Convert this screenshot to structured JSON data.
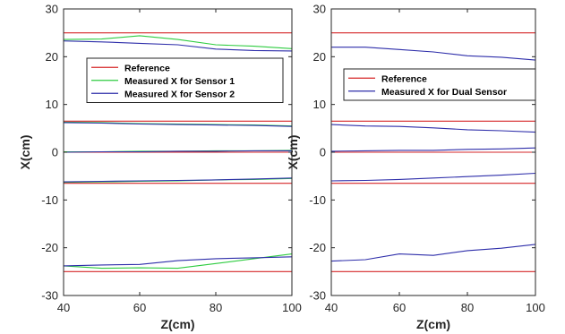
{
  "chart_data": [
    {
      "type": "line",
      "title": "",
      "xlabel": "Z(cm)",
      "ylabel": "X(cm)",
      "xlim": [
        40,
        100
      ],
      "ylim": [
        -30,
        30
      ],
      "xticks": [
        40,
        60,
        80,
        100
      ],
      "yticks": [
        30,
        20,
        10,
        0,
        -10,
        -20,
        -30
      ],
      "grid": false,
      "legend_position": "right",
      "legend": [
        "Reference",
        "Measured X for Sensor 1",
        "Measured X for Sensor 2"
      ],
      "series": [
        {
          "name": "Reference",
          "color": "#d62728",
          "lines": [
            {
              "x": [
                40,
                100
              ],
              "y": [
                25,
                25
              ]
            },
            {
              "x": [
                40,
                100
              ],
              "y": [
                6.5,
                6.5
              ]
            },
            {
              "x": [
                40,
                100
              ],
              "y": [
                0,
                0
              ]
            },
            {
              "x": [
                40,
                100
              ],
              "y": [
                -6.5,
                -6.5
              ]
            },
            {
              "x": [
                40,
                100
              ],
              "y": [
                -25,
                -25
              ]
            }
          ]
        },
        {
          "name": "Measured X for Sensor 1",
          "color": "#2ecc40",
          "lines": [
            {
              "x": [
                40,
                50,
                60,
                70,
                80,
                90,
                100
              ],
              "y": [
                23.6,
                23.7,
                24.4,
                23.6,
                22.5,
                22.2,
                21.7
              ]
            },
            {
              "x": [
                40,
                50,
                60,
                70,
                80,
                90,
                100
              ],
              "y": [
                6.3,
                6.2,
                6.0,
                5.9,
                5.8,
                5.7,
                5.5
              ]
            },
            {
              "x": [
                40,
                50,
                60,
                70,
                80,
                90,
                100
              ],
              "y": [
                0.1,
                0.1,
                0.2,
                0.2,
                0.3,
                0.3,
                0.4
              ]
            },
            {
              "x": [
                40,
                50,
                60,
                70,
                80,
                90,
                100
              ],
              "y": [
                -6.3,
                -6.2,
                -6.1,
                -6.0,
                -5.8,
                -5.7,
                -5.5
              ]
            },
            {
              "x": [
                40,
                50,
                60,
                70,
                80,
                90,
                100
              ],
              "y": [
                -23.8,
                -24.3,
                -24.2,
                -24.3,
                -23.3,
                -22.3,
                -21.3
              ]
            }
          ]
        },
        {
          "name": "Measured X for Sensor 2",
          "color": "#2e2eaa",
          "lines": [
            {
              "x": [
                40,
                50,
                60,
                70,
                80,
                90,
                100
              ],
              "y": [
                23.3,
                23.1,
                22.8,
                22.5,
                21.6,
                21.3,
                21.2
              ]
            },
            {
              "x": [
                40,
                50,
                60,
                70,
                80,
                90,
                100
              ],
              "y": [
                6.2,
                6.1,
                5.9,
                5.8,
                5.7,
                5.6,
                5.4
              ]
            },
            {
              "x": [
                40,
                50,
                60,
                70,
                80,
                90,
                100
              ],
              "y": [
                0.0,
                0.1,
                0.1,
                0.2,
                0.2,
                0.3,
                0.3
              ]
            },
            {
              "x": [
                40,
                50,
                60,
                70,
                80,
                90,
                100
              ],
              "y": [
                -6.2,
                -6.1,
                -6.0,
                -5.9,
                -5.8,
                -5.6,
                -5.4
              ]
            },
            {
              "x": [
                40,
                50,
                60,
                70,
                80,
                90,
                100
              ],
              "y": [
                -23.8,
                -23.6,
                -23.5,
                -22.7,
                -22.3,
                -22.1,
                -21.9
              ]
            }
          ]
        }
      ]
    },
    {
      "type": "line",
      "title": "",
      "xlabel": "Z(cm)",
      "ylabel": "X(cm)",
      "xlim": [
        40,
        100
      ],
      "ylim": [
        -30,
        30
      ],
      "xticks": [
        40,
        60,
        80,
        100
      ],
      "yticks": [
        30,
        20,
        10,
        0,
        -10,
        -20,
        -30
      ],
      "grid": false,
      "legend_position": "right",
      "legend": [
        "Reference",
        "Measured X for Dual Sensor"
      ],
      "series": [
        {
          "name": "Reference",
          "color": "#d62728",
          "lines": [
            {
              "x": [
                40,
                100
              ],
              "y": [
                25,
                25
              ]
            },
            {
              "x": [
                40,
                100
              ],
              "y": [
                6.5,
                6.5
              ]
            },
            {
              "x": [
                40,
                100
              ],
              "y": [
                0,
                0
              ]
            },
            {
              "x": [
                40,
                100
              ],
              "y": [
                -6.5,
                -6.5
              ]
            },
            {
              "x": [
                40,
                100
              ],
              "y": [
                -25,
                -25
              ]
            }
          ]
        },
        {
          "name": "Measured X for Dual Sensor",
          "color": "#2e2eaa",
          "lines": [
            {
              "x": [
                40,
                50,
                60,
                70,
                80,
                90,
                100
              ],
              "y": [
                22.0,
                22.0,
                21.5,
                21.0,
                20.2,
                19.9,
                19.3
              ]
            },
            {
              "x": [
                40,
                50,
                60,
                70,
                80,
                90,
                100
              ],
              "y": [
                5.8,
                5.5,
                5.4,
                5.1,
                4.7,
                4.5,
                4.2
              ]
            },
            {
              "x": [
                40,
                50,
                60,
                70,
                80,
                90,
                100
              ],
              "y": [
                0.2,
                0.3,
                0.4,
                0.4,
                0.6,
                0.7,
                0.9
              ]
            },
            {
              "x": [
                40,
                50,
                60,
                70,
                80,
                90,
                100
              ],
              "y": [
                -6.0,
                -5.9,
                -5.7,
                -5.4,
                -5.1,
                -4.8,
                -4.4
              ]
            },
            {
              "x": [
                40,
                50,
                60,
                70,
                80,
                90,
                100
              ],
              "y": [
                -22.8,
                -22.5,
                -21.3,
                -21.6,
                -20.6,
                -20.1,
                -19.3
              ]
            }
          ]
        }
      ]
    }
  ]
}
